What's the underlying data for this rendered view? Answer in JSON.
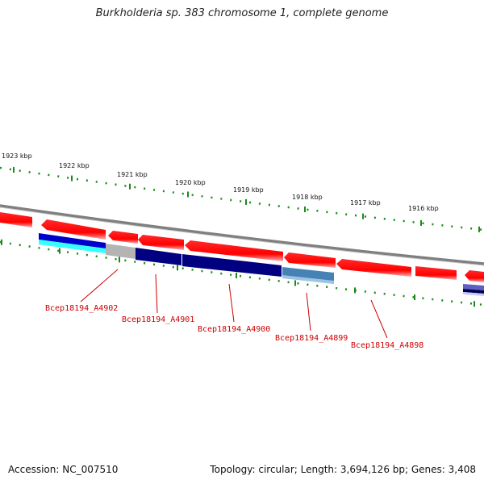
{
  "title": "Burkholderia sp. 383 chromosome 1, complete genome",
  "footer": {
    "accession": "Accession: NC_007510",
    "summary": "Topology: circular; Length: 3,694,126 bp; Genes: 3,408"
  },
  "scale_labels": [
    "1923 kbp",
    "1922 kbp",
    "1921 kbp",
    "1920 kbp",
    "1919 kbp",
    "1918 kbp",
    "1917 kbp",
    "1916 kbp"
  ],
  "gene_labels": [
    "Bcep18194_A4902",
    "Bcep18194_A4901",
    "Bcep18194_A4900",
    "Bcep18194_A4899",
    "Bcep18194_A4898"
  ],
  "colors": {
    "forward_gene": "#ff0000",
    "backbone": "#7f7f7f",
    "tick": "#1a8a1a",
    "label": "#cc0000",
    "reverse_palette": [
      "#0000cc",
      "#33ffff",
      "#b4b4b4",
      "#000080",
      "#4682b4",
      "#6060c0"
    ]
  }
}
